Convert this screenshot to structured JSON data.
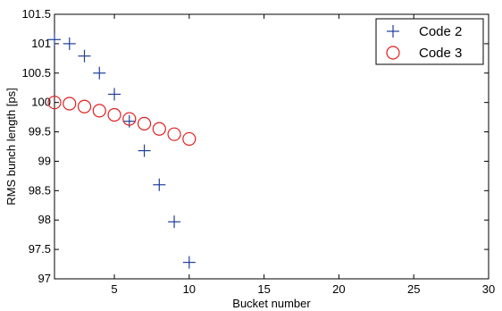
{
  "chart_data": {
    "type": "scatter",
    "title": "",
    "xlabel": "Bucket number",
    "ylabel": "RMS bunch length [ps]",
    "xlim": [
      1,
      30
    ],
    "ylim": [
      97,
      101.5
    ],
    "xticks": [
      5,
      10,
      15,
      20,
      25,
      30
    ],
    "yticks": [
      97,
      97.5,
      98,
      98.5,
      99,
      99.5,
      100,
      100.5,
      101,
      101.5
    ],
    "legend_position": "top-right",
    "grid": false,
    "series": [
      {
        "name": "Code 2",
        "marker": "plus",
        "color": "#1f3f99",
        "x": [
          1,
          2,
          3,
          4,
          5,
          6,
          7,
          8,
          9,
          10
        ],
        "y": [
          101.07,
          101.0,
          100.79,
          100.5,
          100.14,
          99.68,
          99.18,
          98.6,
          97.97,
          97.28
        ]
      },
      {
        "name": "Code 3",
        "marker": "circle",
        "color": "#e02020",
        "x": [
          1,
          2,
          3,
          4,
          5,
          6,
          7,
          8,
          9,
          10
        ],
        "y": [
          100.0,
          99.98,
          99.93,
          99.86,
          99.79,
          99.72,
          99.64,
          99.55,
          99.46,
          99.38
        ]
      }
    ]
  }
}
